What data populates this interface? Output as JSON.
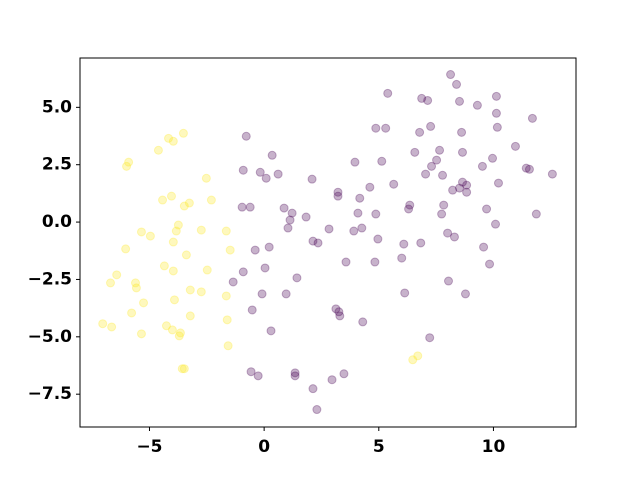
{
  "chart_data": {
    "type": "scatter",
    "alpha": 0.3,
    "xlim": [
      -8.03,
      13.6
    ],
    "ylim": [
      -8.93,
      7.15
    ],
    "xticks": [
      {
        "value": -5,
        "label": "−5"
      },
      0,
      5,
      10
    ],
    "yticks": [
      {
        "value": -7.5,
        "label": "−7.5"
      },
      {
        "value": -5,
        "label": "−5.0"
      },
      {
        "value": -2.5,
        "label": "−2.5"
      },
      {
        "value": 0,
        "label": "0.0"
      },
      {
        "value": 2.5,
        "label": "2.5"
      },
      {
        "value": 5,
        "label": "5.0"
      }
    ],
    "series": [
      {
        "color": "#fde725",
        "x": [
          -7.04,
          -6.65,
          -6.7,
          -6.43,
          -6.04,
          -5.78,
          -5.61,
          -5.57,
          -5.35,
          -5.26,
          -6.0,
          -5.91,
          -5.35,
          -4.96,
          -4.61,
          -4.43,
          -4.35,
          -4.26,
          -4.0,
          -4.17,
          -3.96,
          -4.04,
          -3.96,
          -3.91,
          -3.83,
          -3.74,
          -3.65,
          -3.7,
          -3.52,
          -3.48,
          -3.26,
          -3.57,
          -3.48,
          -3.96,
          -3.39,
          -3.22,
          -3.22,
          -2.74,
          -2.74,
          -2.52,
          -2.48,
          -2.3,
          -1.65,
          -1.65,
          -1.61,
          -1.57,
          -1.48,
          6.48,
          6.7
        ],
        "y": [
          -4.43,
          -4.57,
          -2.65,
          -2.3,
          -1.17,
          -3.96,
          -2.65,
          -2.87,
          -4.87,
          -3.52,
          2.43,
          2.61,
          -0.43,
          -0.61,
          3.13,
          0.96,
          -1.91,
          -4.52,
          -4.7,
          3.65,
          3.52,
          1.13,
          -2.13,
          -3.39,
          -0.39,
          -0.13,
          -4.83,
          -4.96,
          3.87,
          0.7,
          0.83,
          -6.39,
          -6.39,
          -0.87,
          -1.43,
          -4.09,
          -2.96,
          -0.35,
          -3.04,
          1.91,
          -2.09,
          0.96,
          -0.39,
          -3.22,
          -4.26,
          -5.39,
          -1.22,
          -6.0,
          -5.83
        ]
      },
      {
        "color": "#440154",
        "x": [
          -0.78,
          -0.91,
          -0.96,
          -0.61,
          -0.39,
          -0.17,
          0.09,
          0.22,
          0.35,
          0.61,
          0.04,
          -0.09,
          -0.91,
          -1.35,
          -0.52,
          -0.57,
          -0.26,
          0.3,
          0.96,
          0.87,
          1.13,
          1.22,
          1.04,
          1.43,
          1.83,
          2.09,
          2.13,
          2.35,
          2.83,
          3.22,
          3.22,
          3.13,
          3.26,
          3.3,
          3.48,
          2.96,
          2.13,
          2.3,
          1.35,
          1.35,
          3.57,
          3.91,
          3.96,
          4.09,
          4.17,
          4.26,
          4.3,
          4.61,
          4.83,
          4.87,
          4.87,
          4.96,
          5.13,
          5.3,
          5.39,
          5.65,
          6.0,
          6.09,
          6.13,
          6.3,
          6.35,
          6.57,
          6.78,
          6.87,
          6.83,
          7.04,
          7.13,
          7.26,
          7.3,
          7.52,
          7.65,
          7.74,
          7.78,
          8.0,
          7.83,
          8.04,
          8.3,
          8.22,
          8.52,
          8.61,
          8.65,
          8.78,
          8.52,
          8.13,
          8.39,
          8.83,
          8.65,
          8.83,
          9.3,
          9.52,
          9.57,
          9.7,
          9.83,
          9.96,
          10.13,
          10.13,
          10.17,
          10.22,
          10.96,
          11.43,
          11.57,
          11.7,
          11.87,
          12.57,
          10.09,
          7.22
        ],
        "y": [
          3.74,
          2.26,
          0.65,
          0.65,
          -1.22,
          2.17,
          1.91,
          -1.09,
          2.91,
          2.09,
          -2.0,
          -3.13,
          -2.17,
          -2.61,
          -3.83,
          -6.52,
          -6.7,
          -4.74,
          -3.13,
          0.61,
          0.09,
          0.39,
          -0.26,
          -2.43,
          0.22,
          1.87,
          -0.83,
          -0.91,
          -0.3,
          1.3,
          1.13,
          -3.78,
          -3.91,
          -4.09,
          -6.61,
          -6.87,
          -7.26,
          -8.17,
          -6.57,
          -6.7,
          -1.74,
          -0.39,
          2.61,
          0.39,
          1.04,
          -0.26,
          -4.35,
          1.52,
          -1.74,
          0.35,
          4.09,
          -0.74,
          2.65,
          4.09,
          5.61,
          1.65,
          -1.57,
          -0.96,
          -3.09,
          0.57,
          0.74,
          3.04,
          3.91,
          5.39,
          -0.91,
          2.09,
          5.3,
          4.17,
          2.43,
          2.7,
          3.13,
          0.35,
          2.04,
          -0.48,
          0.74,
          -2.57,
          -0.65,
          1.39,
          1.48,
          3.91,
          3.04,
          -3.13,
          5.26,
          6.43,
          6.0,
          1.61,
          1.74,
          1.3,
          5.09,
          2.43,
          -1.09,
          0.57,
          -1.83,
          2.78,
          5.48,
          4.74,
          4.13,
          1.7,
          3.3,
          2.35,
          2.3,
          4.52,
          0.35,
          2.09,
          -0.09,
          -5.04
        ]
      }
    ]
  }
}
